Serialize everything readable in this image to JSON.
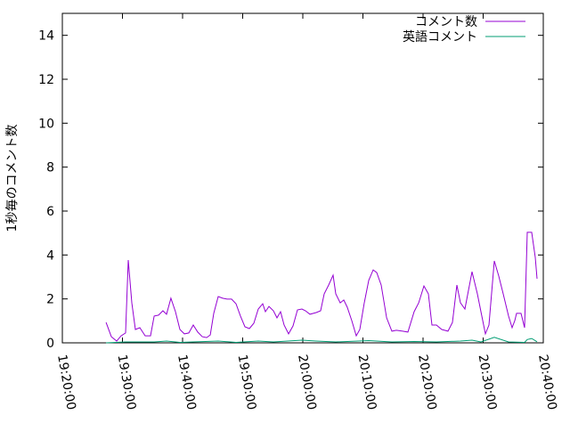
{
  "chart_data": {
    "type": "line",
    "title": "",
    "xlabel": "",
    "ylabel": "1秒毎のコメント数",
    "xlim": [
      "19:20:00",
      "20:40:00"
    ],
    "ylim": [
      0,
      15
    ],
    "x_ticks": [
      "19:20:00",
      "19:30:00",
      "19:40:00",
      "19:50:00",
      "20:00:00",
      "20:10:00",
      "20:20:00",
      "20:30:00",
      "20:40:00"
    ],
    "y_ticks": [
      0,
      2,
      4,
      6,
      8,
      10,
      12,
      14
    ],
    "grid": false,
    "legend_position": "top-right",
    "series": [
      {
        "name": "コメント数",
        "color": "#9400d3",
        "points": [
          [
            "19:27:16",
            0.93
          ],
          [
            "19:28:09",
            0.28
          ],
          [
            "19:29:02",
            0.08
          ],
          [
            "19:29:47",
            0.32
          ],
          [
            "19:30:31",
            0.45
          ],
          [
            "19:30:58",
            3.77
          ],
          [
            "19:31:33",
            1.82
          ],
          [
            "19:32:09",
            0.61
          ],
          [
            "19:32:53",
            0.69
          ],
          [
            "19:33:47",
            0.32
          ],
          [
            "19:34:40",
            0.32
          ],
          [
            "19:35:16",
            1.22
          ],
          [
            "19:36:00",
            1.26
          ],
          [
            "19:36:44",
            1.46
          ],
          [
            "19:37:20",
            1.3
          ],
          [
            "19:38:04",
            2.03
          ],
          [
            "19:38:49",
            1.42
          ],
          [
            "19:39:33",
            0.61
          ],
          [
            "19:40:18",
            0.41
          ],
          [
            "19:41:02",
            0.45
          ],
          [
            "19:41:47",
            0.81
          ],
          [
            "19:42:31",
            0.49
          ],
          [
            "19:43:16",
            0.28
          ],
          [
            "19:44:00",
            0.24
          ],
          [
            "19:44:36",
            0.36
          ],
          [
            "19:45:11",
            1.34
          ],
          [
            "19:45:56",
            2.11
          ],
          [
            "19:46:40",
            2.03
          ],
          [
            "19:47:24",
            1.99
          ],
          [
            "19:48:09",
            1.99
          ],
          [
            "19:48:53",
            1.78
          ],
          [
            "19:49:38",
            1.22
          ],
          [
            "19:50:22",
            0.73
          ],
          [
            "19:51:07",
            0.65
          ],
          [
            "19:51:51",
            0.89
          ],
          [
            "19:52:36",
            1.54
          ],
          [
            "19:53:20",
            1.78
          ],
          [
            "19:53:47",
            1.42
          ],
          [
            "19:54:22",
            1.66
          ],
          [
            "19:55:07",
            1.46
          ],
          [
            "19:55:42",
            1.14
          ],
          [
            "19:56:18",
            1.42
          ],
          [
            "19:56:53",
            0.81
          ],
          [
            "19:57:38",
            0.41
          ],
          [
            "19:58:22",
            0.77
          ],
          [
            "19:59:07",
            1.5
          ],
          [
            "19:59:51",
            1.54
          ],
          [
            "20:00:27",
            1.46
          ],
          [
            "20:01:11",
            1.3
          ],
          [
            "20:02:13",
            1.38
          ],
          [
            "20:02:58",
            1.46
          ],
          [
            "20:03:33",
            2.23
          ],
          [
            "20:04:18",
            2.63
          ],
          [
            "20:05:02",
            3.08
          ],
          [
            "20:05:29",
            2.23
          ],
          [
            "20:06:13",
            1.82
          ],
          [
            "20:06:49",
            1.95
          ],
          [
            "20:07:24",
            1.62
          ],
          [
            "20:08:09",
            1.01
          ],
          [
            "20:08:53",
            0.32
          ],
          [
            "20:09:29",
            0.61
          ],
          [
            "20:10:13",
            1.82
          ],
          [
            "20:10:58",
            2.84
          ],
          [
            "20:11:42",
            3.32
          ],
          [
            "20:12:18",
            3.2
          ],
          [
            "20:13:02",
            2.63
          ],
          [
            "20:13:56",
            1.14
          ],
          [
            "20:14:49",
            0.53
          ],
          [
            "20:15:33",
            0.57
          ],
          [
            "20:16:36",
            0.53
          ],
          [
            "20:17:29",
            0.49
          ],
          [
            "20:18:31",
            1.42
          ],
          [
            "20:19:16",
            1.82
          ],
          [
            "20:20:09",
            2.59
          ],
          [
            "20:20:53",
            2.23
          ],
          [
            "20:21:29",
            0.81
          ],
          [
            "20:22:13",
            0.81
          ],
          [
            "20:23:07",
            0.61
          ],
          [
            "20:24:09",
            0.53
          ],
          [
            "20:24:53",
            0.93
          ],
          [
            "20:25:38",
            2.63
          ],
          [
            "20:26:13",
            1.82
          ],
          [
            "20:26:58",
            1.54
          ],
          [
            "20:28:09",
            3.24
          ],
          [
            "20:29:02",
            2.23
          ],
          [
            "20:29:38",
            1.42
          ],
          [
            "20:30:22",
            0.41
          ],
          [
            "20:30:58",
            0.81
          ],
          [
            "20:31:24",
            2.27
          ],
          [
            "20:31:51",
            3.73
          ],
          [
            "20:32:36",
            3.04
          ],
          [
            "20:33:20",
            2.23
          ],
          [
            "20:34:13",
            1.22
          ],
          [
            "20:34:49",
            0.69
          ],
          [
            "20:35:16",
            1.01
          ],
          [
            "20:35:33",
            1.34
          ],
          [
            "20:36:18",
            1.34
          ],
          [
            "20:36:53",
            0.69
          ],
          [
            "20:37:20",
            5.03
          ],
          [
            "20:38:04",
            5.03
          ],
          [
            "20:38:40",
            3.89
          ],
          [
            "20:38:58",
            2.92
          ]
        ]
      },
      {
        "name": "英語コメント",
        "color": "#009e73",
        "points": [
          [
            "19:27:16",
            0
          ],
          [
            "19:30:31",
            0.04
          ],
          [
            "19:35:16",
            0.04
          ],
          [
            "19:37:20",
            0.08
          ],
          [
            "19:39:33",
            0.02
          ],
          [
            "19:45:56",
            0.08
          ],
          [
            "19:48:53",
            0.02
          ],
          [
            "19:52:36",
            0.08
          ],
          [
            "19:55:07",
            0.04
          ],
          [
            "19:59:51",
            0.12
          ],
          [
            "20:02:13",
            0.08
          ],
          [
            "20:05:29",
            0.04
          ],
          [
            "20:10:58",
            0.1
          ],
          [
            "20:14:49",
            0.04
          ],
          [
            "20:18:31",
            0.06
          ],
          [
            "20:22:13",
            0.04
          ],
          [
            "20:26:13",
            0.08
          ],
          [
            "20:28:09",
            0.12
          ],
          [
            "20:29:38",
            0.04
          ],
          [
            "20:31:51",
            0.25
          ],
          [
            "20:34:13",
            0.04
          ],
          [
            "20:36:53",
            0.02
          ],
          [
            "20:37:20",
            0.15
          ],
          [
            "20:38:04",
            0.2
          ],
          [
            "20:38:58",
            0.05
          ]
        ]
      }
    ]
  }
}
